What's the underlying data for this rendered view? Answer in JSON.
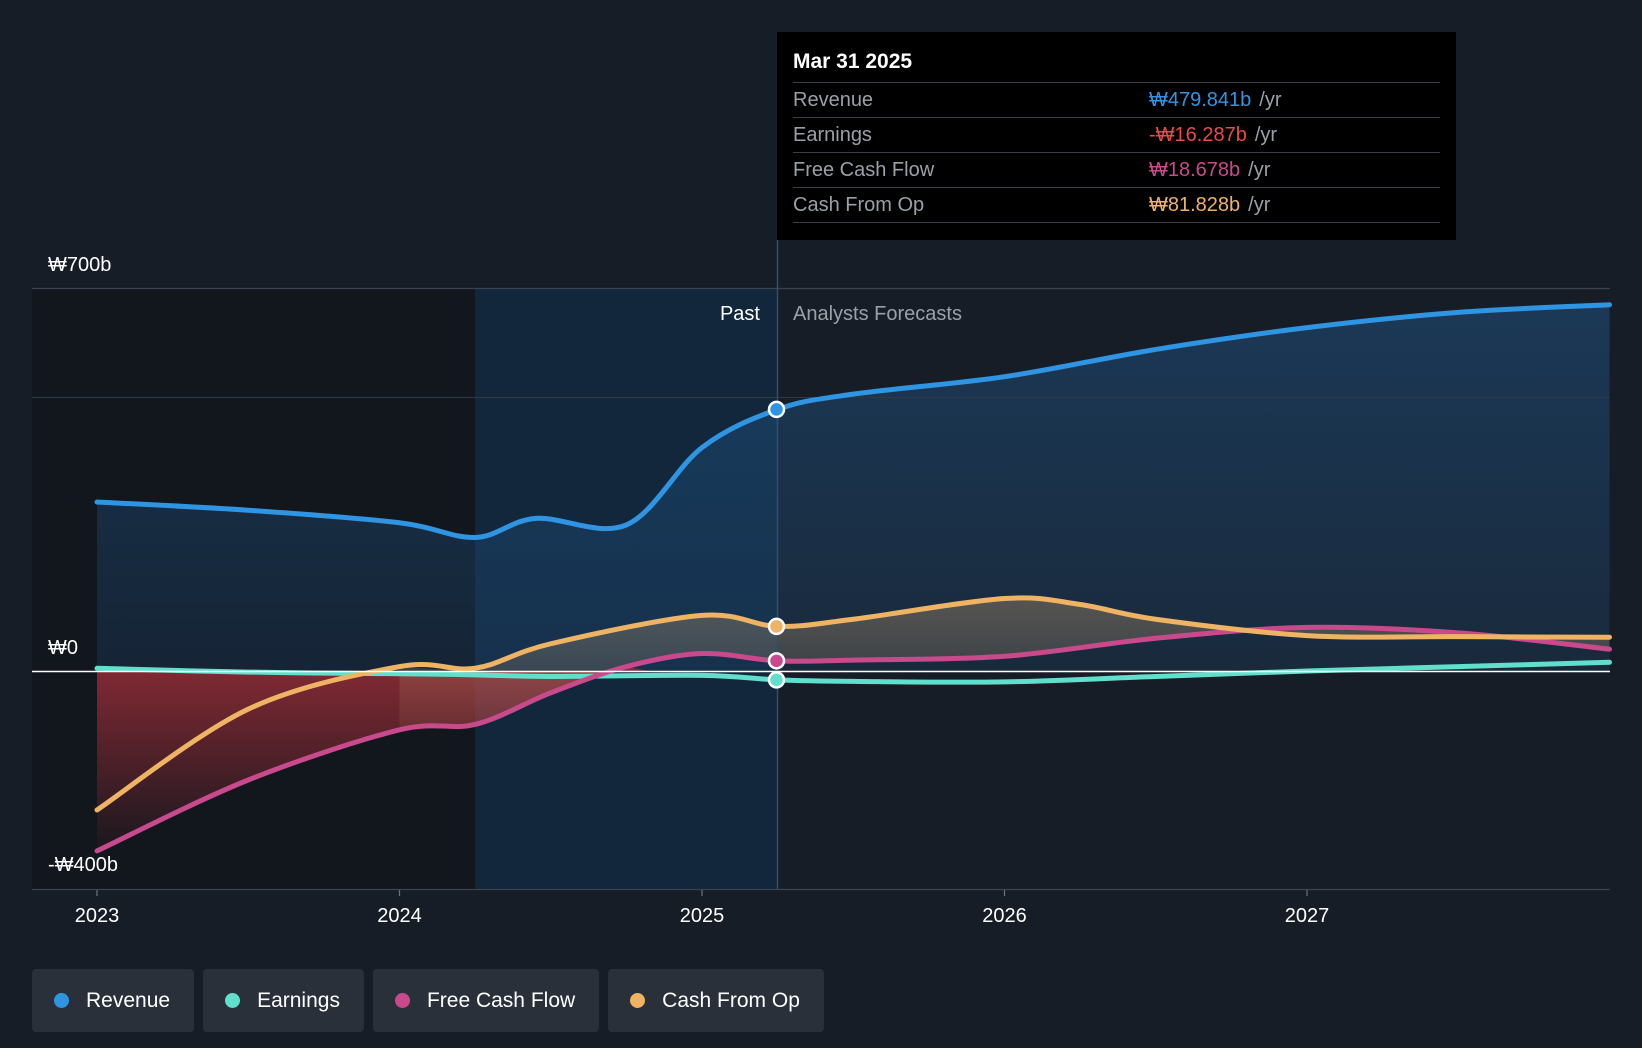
{
  "chart_data": {
    "type": "area",
    "title": "",
    "xlabel": "",
    "ylabel": "",
    "x_ticks": [
      "2023",
      "2024",
      "2025",
      "2026",
      "2027"
    ],
    "ylim": [
      -400,
      700
    ],
    "y_tick_labels": [
      "₩700b",
      "₩0",
      "-₩400b"
    ],
    "past_label": "Past",
    "forecast_label": "Analysts Forecasts",
    "divider_x": 2025.25,
    "series": [
      {
        "name": "Revenue",
        "color": "#2f95e3",
        "points": [
          [
            2023.0,
            310
          ],
          [
            2023.5,
            295
          ],
          [
            2024.0,
            272
          ],
          [
            2024.25,
            245
          ],
          [
            2024.45,
            280
          ],
          [
            2024.75,
            268
          ],
          [
            2025.0,
            410
          ],
          [
            2025.25,
            480
          ],
          [
            2025.5,
            508
          ],
          [
            2026.0,
            540
          ],
          [
            2026.5,
            590
          ],
          [
            2027.0,
            630
          ],
          [
            2027.5,
            658
          ],
          [
            2028.0,
            672
          ]
        ]
      },
      {
        "name": "Earnings",
        "color": "#5fdfcc",
        "points": [
          [
            2023.0,
            5
          ],
          [
            2023.5,
            -2
          ],
          [
            2024.0,
            -5
          ],
          [
            2024.25,
            -7
          ],
          [
            2024.5,
            -10
          ],
          [
            2025.0,
            -8
          ],
          [
            2025.25,
            -16.287
          ],
          [
            2025.5,
            -19
          ],
          [
            2026.0,
            -20
          ],
          [
            2026.5,
            -10
          ],
          [
            2027.0,
            0
          ],
          [
            2027.5,
            8
          ],
          [
            2028.0,
            16
          ]
        ]
      },
      {
        "name": "Free Cash Flow",
        "color": "#c94a8c",
        "points": [
          [
            2023.0,
            -330
          ],
          [
            2023.5,
            -200
          ],
          [
            2024.0,
            -108
          ],
          [
            2024.25,
            -98
          ],
          [
            2024.5,
            -40
          ],
          [
            2024.75,
            8
          ],
          [
            2025.0,
            32
          ],
          [
            2025.25,
            18.678
          ],
          [
            2025.5,
            20
          ],
          [
            2026.0,
            27
          ],
          [
            2026.5,
            60
          ],
          [
            2027.0,
            80
          ],
          [
            2027.5,
            70
          ],
          [
            2028.0,
            40
          ]
        ]
      },
      {
        "name": "Cash From Op",
        "color": "#eeb463",
        "points": [
          [
            2023.0,
            -255
          ],
          [
            2023.5,
            -70
          ],
          [
            2024.0,
            8
          ],
          [
            2024.25,
            5
          ],
          [
            2024.5,
            50
          ],
          [
            2025.0,
            102
          ],
          [
            2025.25,
            81.828
          ],
          [
            2025.5,
            95
          ],
          [
            2026.0,
            133
          ],
          [
            2026.25,
            122
          ],
          [
            2026.5,
            95
          ],
          [
            2027.0,
            65
          ],
          [
            2027.5,
            63
          ],
          [
            2028.0,
            62
          ]
        ]
      }
    ]
  },
  "tooltip": {
    "date": "Mar 31 2025",
    "rows": [
      {
        "label": "Revenue",
        "value": "₩479.841b",
        "unit": "/yr",
        "color": "#2f95e3"
      },
      {
        "label": "Earnings",
        "value": "-₩16.287b",
        "unit": "/yr",
        "color": "#e84b4b"
      },
      {
        "label": "Free Cash Flow",
        "value": "₩18.678b",
        "unit": "/yr",
        "color": "#c94a8c"
      },
      {
        "label": "Cash From Op",
        "value": "₩81.828b",
        "unit": "/yr",
        "color": "#eeb463"
      }
    ]
  },
  "legend": [
    {
      "label": "Revenue",
      "color": "#2f95e3"
    },
    {
      "label": "Earnings",
      "color": "#5fdfcc"
    },
    {
      "label": "Free Cash Flow",
      "color": "#c94a8c"
    },
    {
      "label": "Cash From Op",
      "color": "#eeb463"
    }
  ]
}
